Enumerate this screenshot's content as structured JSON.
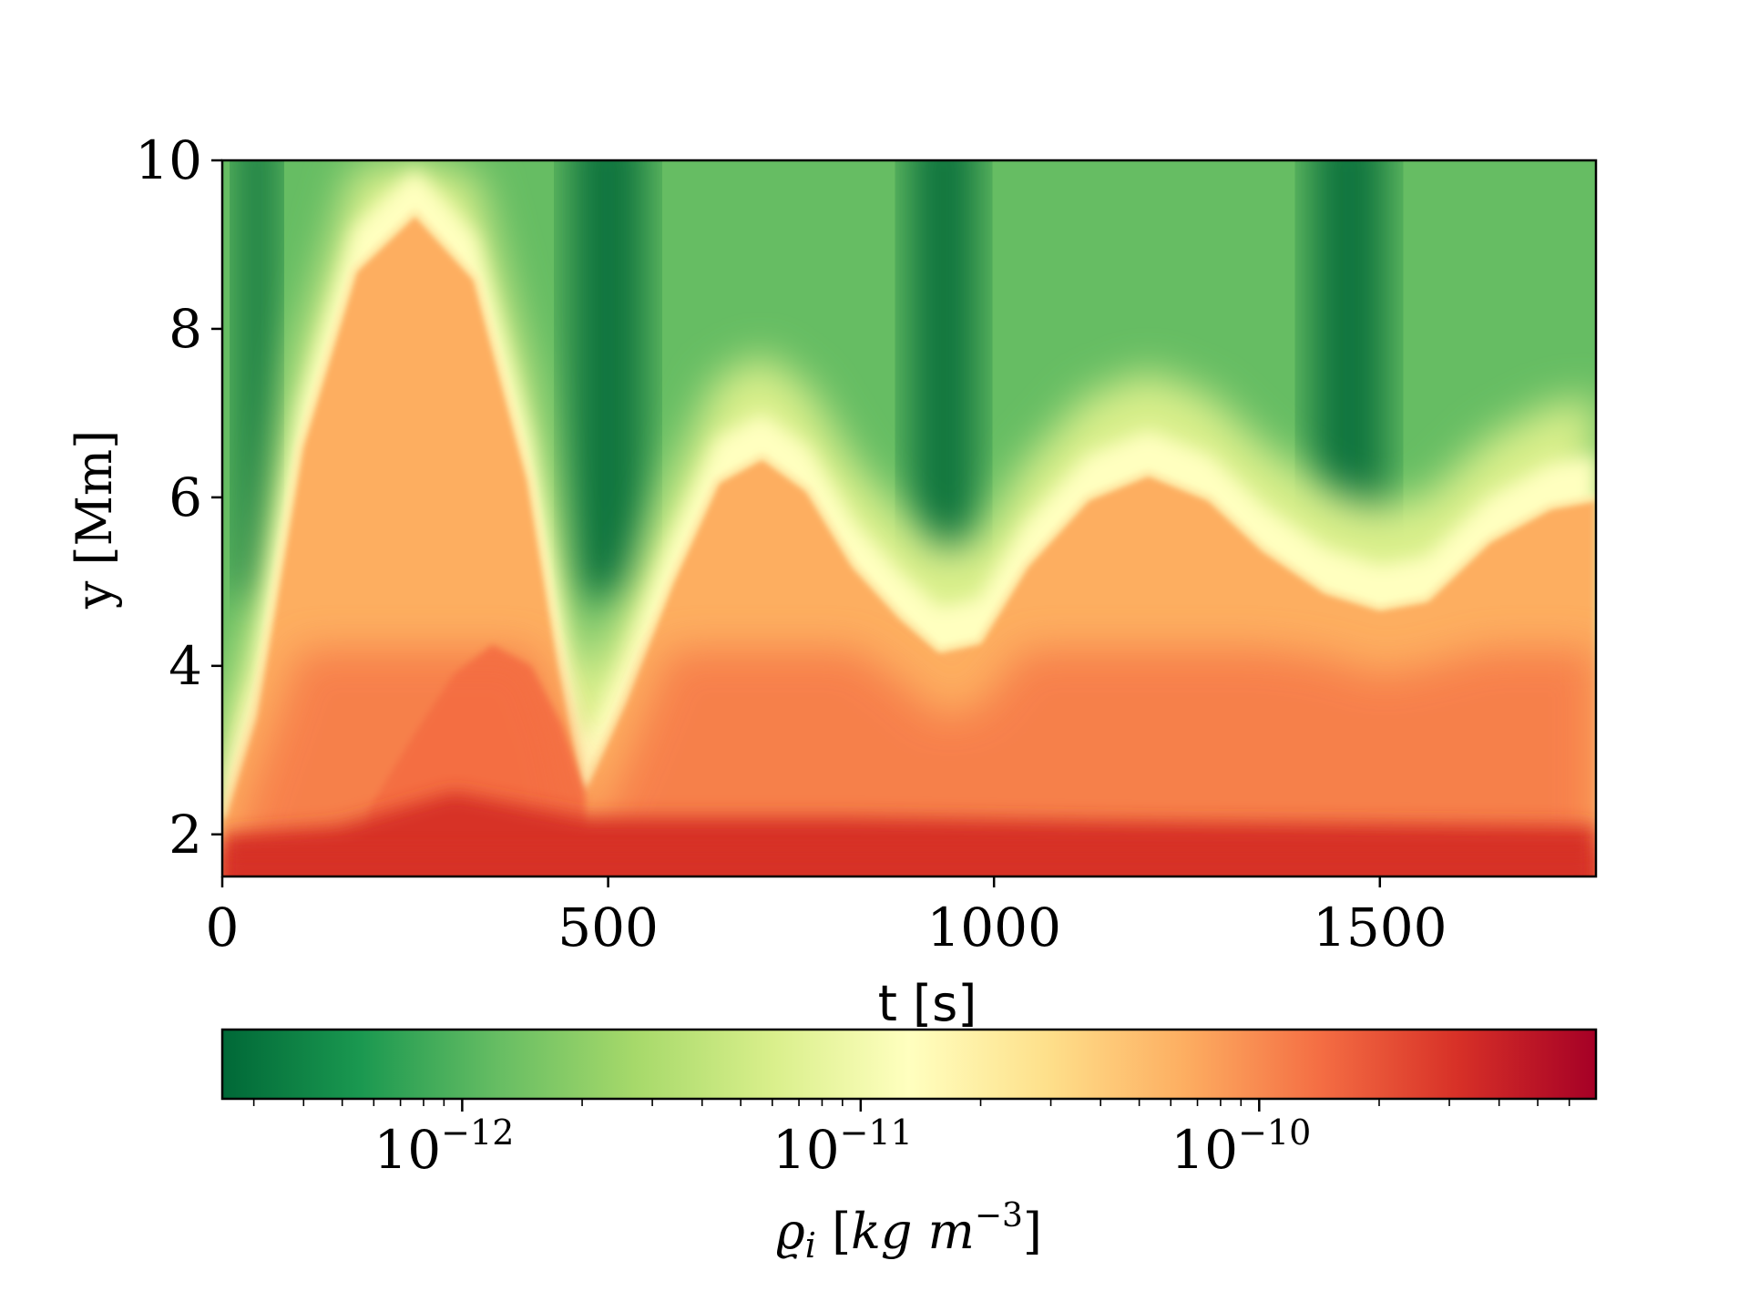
{
  "chart_data": {
    "type": "heatmap",
    "xlabel": "t [s]",
    "ylabel": "y [Mm]",
    "xlim": [
      0,
      1780
    ],
    "ylim": [
      1.5,
      10
    ],
    "x_ticks": [
      {
        "value": 0,
        "label": "0"
      },
      {
        "value": 500,
        "label": "500"
      },
      {
        "value": 1000,
        "label": "1000"
      },
      {
        "value": 1500,
        "label": "1500"
      }
    ],
    "y_ticks": [
      {
        "value": 2,
        "label": "2"
      },
      {
        "value": 4,
        "label": "4"
      },
      {
        "value": 6,
        "label": "6"
      },
      {
        "value": 8,
        "label": "8"
      },
      {
        "value": 10,
        "label": "10"
      }
    ],
    "colormap": "RdYlGn_r",
    "colormap_stops": [
      "#006837",
      "#1a9850",
      "#66bd63",
      "#a6d96a",
      "#d9ef8b",
      "#ffffbf",
      "#fee08b",
      "#fdae61",
      "#f46d43",
      "#d73027",
      "#a50026"
    ],
    "colorbar": {
      "scale": "log",
      "range": [
        2.5e-13,
        7e-10
      ],
      "major_ticks": [
        {
          "value": 1e-12,
          "base": "10",
          "exponent": "−12"
        },
        {
          "value": 1e-11,
          "base": "10",
          "exponent": "−11"
        },
        {
          "value": 1e-10,
          "base": "10",
          "exponent": "−10"
        }
      ],
      "label": "ϱ",
      "label_subscript": "i",
      "label_units_open": " [",
      "label_units_kg": "kg m",
      "label_units_exp": "−3",
      "label_units_close": "]",
      "orientation": "horizontal",
      "placement": "bottom"
    },
    "features": {
      "transition_region_height": [
        {
          "t": 0,
          "y": 2.2
        },
        {
          "t": 40,
          "y": 3.4
        },
        {
          "t": 100,
          "y": 6.6
        },
        {
          "t": 170,
          "y": 8.7
        },
        {
          "t": 250,
          "y": 9.4
        },
        {
          "t": 330,
          "y": 8.6
        },
        {
          "t": 400,
          "y": 6.2
        },
        {
          "t": 440,
          "y": 4.0
        },
        {
          "t": 470,
          "y": 2.6
        },
        {
          "t": 520,
          "y": 3.6
        },
        {
          "t": 580,
          "y": 5.0
        },
        {
          "t": 640,
          "y": 6.2
        },
        {
          "t": 700,
          "y": 6.5
        },
        {
          "t": 760,
          "y": 6.1
        },
        {
          "t": 820,
          "y": 5.2
        },
        {
          "t": 880,
          "y": 4.6
        },
        {
          "t": 930,
          "y": 4.2
        },
        {
          "t": 980,
          "y": 4.3
        },
        {
          "t": 1040,
          "y": 5.2
        },
        {
          "t": 1120,
          "y": 6.0
        },
        {
          "t": 1200,
          "y": 6.3
        },
        {
          "t": 1280,
          "y": 6.0
        },
        {
          "t": 1350,
          "y": 5.4
        },
        {
          "t": 1430,
          "y": 4.9
        },
        {
          "t": 1500,
          "y": 4.7
        },
        {
          "t": 1560,
          "y": 4.8
        },
        {
          "t": 1640,
          "y": 5.5
        },
        {
          "t": 1720,
          "y": 5.9
        },
        {
          "t": 1780,
          "y": 6.0
        }
      ],
      "secondary_front": [
        {
          "t": 190,
          "y": 2.3
        },
        {
          "t": 250,
          "y": 3.2
        },
        {
          "t": 300,
          "y": 3.9
        },
        {
          "t": 350,
          "y": 4.25
        },
        {
          "t": 400,
          "y": 4.0
        },
        {
          "t": 440,
          "y": 3.3
        },
        {
          "t": 470,
          "y": 2.5
        }
      ],
      "dense_layer": [
        {
          "t": 0,
          "y": 2.0
        },
        {
          "t": 150,
          "y": 2.1
        },
        {
          "t": 300,
          "y": 2.5
        },
        {
          "t": 470,
          "y": 2.2
        },
        {
          "t": 800,
          "y": 2.2
        },
        {
          "t": 1200,
          "y": 2.15
        },
        {
          "t": 1780,
          "y": 2.1
        }
      ],
      "dark_green_columns": [
        {
          "t0": 20,
          "t1": 70
        },
        {
          "t0": 450,
          "t1": 550
        },
        {
          "t0": 890,
          "t1": 980
        },
        {
          "t0": 1410,
          "t1": 1510
        }
      ]
    }
  }
}
